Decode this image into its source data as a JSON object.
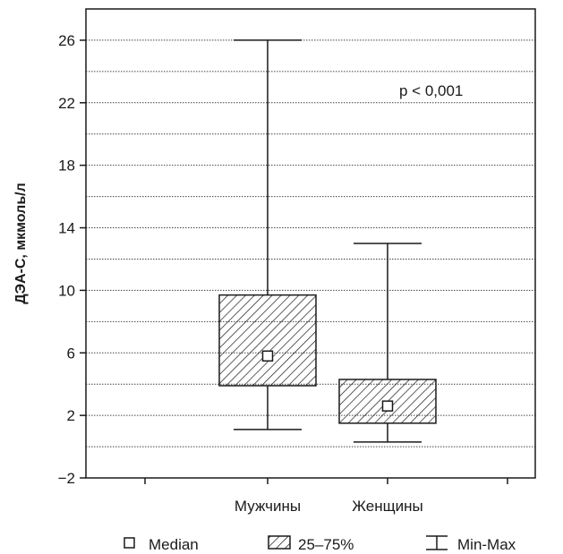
{
  "chart_data": {
    "type": "box",
    "ylabel": "ДЭА-С, мкмоль/л",
    "xlabel": "",
    "ylim": [
      -2,
      28
    ],
    "y_ticks": [
      -2,
      2,
      6,
      10,
      14,
      18,
      22,
      26
    ],
    "y_tick_labels": [
      "−2",
      "2",
      "6",
      "10",
      "14",
      "18",
      "22",
      "26"
    ],
    "y_gridlines": [
      0,
      2,
      4,
      6,
      8,
      10,
      12,
      14,
      16,
      18,
      20,
      22,
      24,
      26
    ],
    "grid": true,
    "categories": [
      "Мужчины",
      "Женщины"
    ],
    "series": [
      {
        "category": "Мужчины",
        "min": 1.1,
        "q1": 3.9,
        "median": 5.8,
        "q3": 9.7,
        "max": 26
      },
      {
        "category": "Женщины",
        "min": 0.3,
        "q1": 1.5,
        "median": 2.6,
        "q3": 4.3,
        "max": 13
      }
    ],
    "annotation": "p < 0,001",
    "legend": {
      "placement": "bottom",
      "items": [
        {
          "symbol": "square",
          "label": "Median"
        },
        {
          "symbol": "hatched-box",
          "label": "25–75%"
        },
        {
          "symbol": "whisker",
          "label": "Min-Max"
        }
      ]
    }
  }
}
